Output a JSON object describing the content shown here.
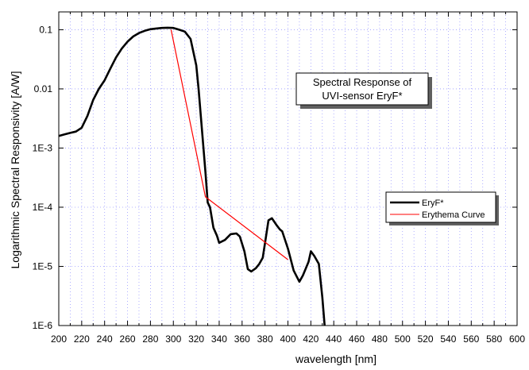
{
  "chart_data": {
    "type": "line",
    "title_lines": [
      "Spectral Response of",
      "UVI-sensor EryF*"
    ],
    "xlabel": "wavelength [nm]",
    "ylabel": "Logarithmic Spectral Responsivity [A/W]",
    "xlim": [
      200,
      600
    ],
    "ylim": [
      1e-06,
      0.2
    ],
    "yscale": "log",
    "x_ticks": [
      200,
      210,
      220,
      230,
      240,
      250,
      260,
      270,
      280,
      290,
      300,
      310,
      320,
      330,
      340,
      350,
      360,
      370,
      380,
      390,
      400,
      410,
      420,
      430,
      440,
      450,
      460,
      470,
      480,
      490,
      500,
      510,
      520,
      530,
      540,
      550,
      560,
      570,
      580,
      590,
      600
    ],
    "x_tick_labels": [
      "200",
      "220",
      "240",
      "260",
      "280",
      "300",
      "320",
      "340",
      "360",
      "380",
      "400",
      "420",
      "440",
      "460",
      "480",
      "500",
      "520",
      "540",
      "560",
      "580",
      "600"
    ],
    "y_ticks": [
      0.1,
      0.01,
      0.001,
      0.0001,
      1e-05,
      1e-06
    ],
    "y_tick_labels": [
      "0.1",
      "0.01",
      "1E-3",
      "1E-4",
      "1E-5",
      "1E-6"
    ],
    "grid": true,
    "legend_position": "right",
    "series": [
      {
        "name": "EryF*",
        "color": "#000000",
        "x": [
          200,
          205,
          210,
          215,
          220,
          225,
          230,
          235,
          240,
          245,
          250,
          255,
          260,
          265,
          270,
          275,
          280,
          285,
          290,
          295,
          300,
          305,
          310,
          315,
          320,
          322,
          325,
          328,
          330,
          332,
          335,
          338,
          340,
          345,
          350,
          355,
          358,
          362,
          365,
          368,
          372,
          375,
          378,
          380,
          383,
          386,
          390,
          393,
          395,
          400,
          405,
          410,
          413,
          418,
          420,
          423,
          427,
          430,
          432
        ],
        "y": [
          0.0016,
          0.0017,
          0.0018,
          0.0019,
          0.0022,
          0.0035,
          0.0065,
          0.01,
          0.014,
          0.022,
          0.034,
          0.048,
          0.063,
          0.077,
          0.088,
          0.096,
          0.102,
          0.105,
          0.107,
          0.108,
          0.107,
          0.1,
          0.093,
          0.07,
          0.025,
          0.01,
          0.002,
          0.0004,
          0.00012,
          0.0001,
          4.5e-05,
          3.3e-05,
          2.5e-05,
          2.8e-05,
          3.5e-05,
          3.6e-05,
          3.2e-05,
          1.8e-05,
          9e-06,
          8.2e-06,
          9.3e-06,
          1.1e-05,
          1.4e-05,
          2.5e-05,
          6e-05,
          6.5e-05,
          5e-05,
          4.2e-05,
          3.9e-05,
          2e-05,
          8.5e-06,
          5.5e-06,
          7e-06,
          1.2e-05,
          1.8e-05,
          1.5e-05,
          1.1e-05,
          3e-06,
          1e-06
        ]
      },
      {
        "name": "Erythema Curve",
        "color": "#ff0000",
        "x": [
          298,
          328,
          400
        ],
        "y": [
          0.1,
          0.00015,
          1.3e-05
        ]
      }
    ]
  }
}
